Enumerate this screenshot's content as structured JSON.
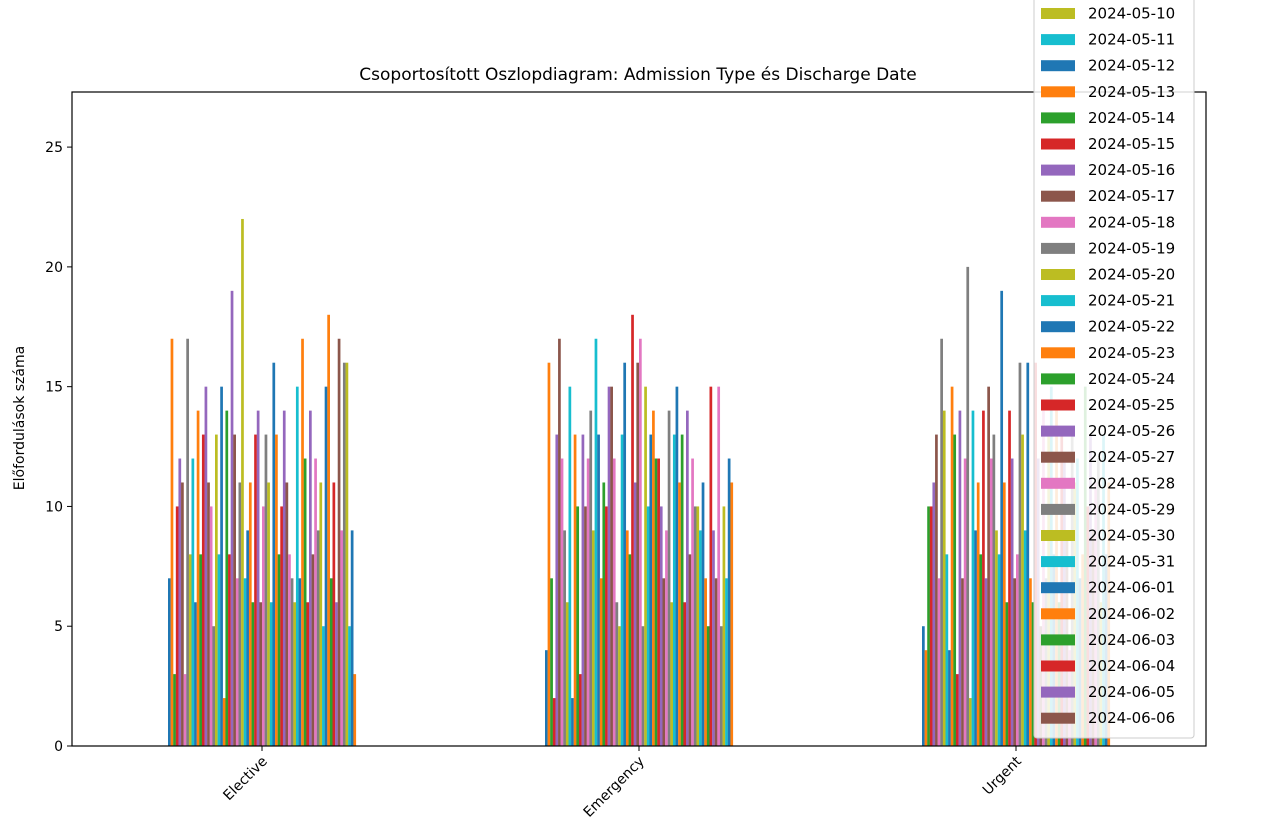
{
  "chart_data": {
    "type": "bar",
    "title": "Csoportosított Oszlopdiagram: Admission Type és Discharge Date",
    "xlabel": "",
    "ylabel": "Előfordulások száma",
    "categories": [
      "Elective",
      "Emergency",
      "Urgent"
    ],
    "ylim": [
      0,
      27.3
    ],
    "yticks": [
      0,
      5,
      10,
      15,
      20,
      25
    ],
    "grid": false,
    "legend_position": "top-right",
    "colors": [
      "#1f77b4",
      "#ff7f0e",
      "#2ca02c",
      "#d62728",
      "#9467bd",
      "#8c564b",
      "#e377c2",
      "#7f7f7f",
      "#bcbd22",
      "#17becf"
    ],
    "series_count": 72,
    "legend_entries": [
      "2024-05-10",
      "2024-05-11",
      "2024-05-12",
      "2024-05-13",
      "2024-05-14",
      "2024-05-15",
      "2024-05-16",
      "2024-05-17",
      "2024-05-18",
      "2024-05-19",
      "2024-05-20",
      "2024-05-21",
      "2024-05-22",
      "2024-05-23",
      "2024-05-24",
      "2024-05-25",
      "2024-05-26",
      "2024-05-27",
      "2024-05-28",
      "2024-05-29",
      "2024-05-30",
      "2024-05-31",
      "2024-06-01",
      "2024-06-02",
      "2024-06-03",
      "2024-06-04",
      "2024-06-05",
      "2024-06-06"
    ],
    "legend_color_offset": 8,
    "values": {
      "Elective": [
        7,
        17,
        3,
        10,
        12,
        11,
        3,
        17,
        8,
        12,
        6,
        14,
        8,
        13,
        15,
        11,
        10,
        5,
        13,
        8,
        15,
        2,
        14,
        8,
        19,
        13,
        7,
        11,
        22,
        7,
        9,
        11,
        6,
        13,
        14,
        6,
        10,
        13,
        11,
        6,
        16,
        13,
        8,
        10,
        14,
        11,
        8,
        7,
        6,
        15,
        7,
        17,
        12,
        6,
        14,
        8,
        12,
        9,
        11,
        5,
        15,
        18,
        7,
        11,
        6,
        17,
        9,
        16,
        16,
        5,
        9,
        3
      ],
      "Emergency": [
        4,
        16,
        7,
        2,
        13,
        17,
        12,
        9,
        6,
        15,
        2,
        13,
        10,
        3,
        13,
        10,
        12,
        14,
        9,
        17,
        13,
        7,
        11,
        10,
        15,
        15,
        12,
        6,
        5,
        13,
        16,
        9,
        8,
        18,
        11,
        16,
        17,
        5,
        15,
        10,
        13,
        14,
        12,
        12,
        10,
        7,
        9,
        14,
        6,
        13,
        15,
        11,
        13,
        6,
        14,
        8,
        12,
        10,
        10,
        9,
        11,
        7,
        5,
        15,
        9,
        7,
        15,
        5,
        10,
        7,
        12,
        11
      ]
    },
    "values_urgent": [
      5,
      4,
      10,
      10,
      11,
      13,
      7,
      17,
      14,
      8,
      4,
      15,
      13,
      3,
      14,
      7,
      12,
      20,
      2,
      14,
      9,
      11,
      8,
      14,
      7,
      15,
      12,
      13,
      9,
      8,
      19,
      11,
      6,
      14,
      12,
      7,
      8,
      16,
      13,
      9,
      16,
      7,
      6,
      16,
      12,
      5,
      14,
      7,
      13,
      15,
      8,
      14,
      6,
      13,
      12,
      9,
      4,
      13,
      11,
      12,
      7,
      8,
      15,
      10,
      13,
      9,
      11,
      12,
      6,
      13,
      8,
      11
    ]
  }
}
